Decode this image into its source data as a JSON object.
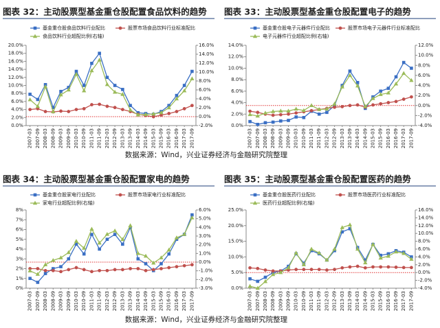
{
  "chart_data": [
    {
      "type": "line",
      "title": "图表 32：主动股票型基金重仓股配置食品饮料的趋势",
      "categories": [
        "2007-03",
        "2007-09",
        "2008-03",
        "2008-09",
        "2009-03",
        "2009-09",
        "2010-03",
        "2010-09",
        "2011-03",
        "2011-09",
        "2012-03",
        "2012-09",
        "2013-03",
        "2013-09",
        "2014-03",
        "2014-09",
        "2015-03",
        "2015-09",
        "2016-03",
        "2016-09",
        "2017-03",
        "2017-09"
      ],
      "series": [
        {
          "name": "基金重仓股食品饮料行业配比",
          "color": "#3a6fc4",
          "marker": "square",
          "axis": "y",
          "values": [
            7.8,
            6.5,
            10.2,
            4.5,
            8.5,
            9.5,
            13.5,
            10,
            15.5,
            18,
            12,
            10,
            9,
            5,
            3.2,
            3,
            2.8,
            3.5,
            5,
            7.5,
            10,
            13.5
          ]
        },
        {
          "name": "股票市场食品饮料行业标准配比",
          "color": "#c0504d",
          "marker": "circle",
          "axis": "y",
          "values": [
            4,
            4.2,
            3.5,
            3.4,
            3.6,
            3.5,
            4,
            4.2,
            5.2,
            5.3,
            4.8,
            4.5,
            4,
            3.5,
            2.8,
            2.5,
            2.2,
            2.6,
            3,
            3.5,
            4.2,
            5
          ]
        },
        {
          "name": "食品饮料行业超配比例(右轴)",
          "color": "#9bbb59",
          "marker": "triangle",
          "axis": "y2",
          "values": [
            3.8,
            2.3,
            6.7,
            1.1,
            4.9,
            6,
            9.5,
            5.8,
            10.3,
            12.7,
            7.2,
            5.5,
            5,
            1.5,
            0.4,
            0.5,
            0.6,
            0.9,
            2,
            4,
            5.8,
            8.5
          ]
        }
      ],
      "ylim": [
        0,
        20
      ],
      "yticks": [
        {
          "value": 0,
          "label": "0.0%"
        },
        {
          "value": 2,
          "label": "2.0%"
        },
        {
          "value": 4,
          "label": "4.0%"
        },
        {
          "value": 6,
          "label": "6.0%"
        },
        {
          "value": 8,
          "label": "8.0%"
        },
        {
          "value": 10,
          "label": "10.0%"
        },
        {
          "value": 12,
          "label": "12.0%"
        },
        {
          "value": 14,
          "label": "14.0%"
        },
        {
          "value": 16,
          "label": "16.0%"
        },
        {
          "value": 18,
          "label": "18.0%"
        },
        {
          "value": 20,
          "label": "20.0%"
        }
      ],
      "y2lim": [
        -2,
        16
      ],
      "y2ticks": [
        {
          "value": -2,
          "label": "-2.0%"
        },
        {
          "value": 0,
          "label": "0.0%"
        },
        {
          "value": 2,
          "label": "2.0%"
        },
        {
          "value": 4,
          "label": "4.0%"
        },
        {
          "value": 6,
          "label": "6.0%"
        },
        {
          "value": 8,
          "label": "8.0%"
        },
        {
          "value": 10,
          "label": "10.0%"
        },
        {
          "value": 12,
          "label": "12.0%"
        },
        {
          "value": 14,
          "label": "14.0%"
        },
        {
          "value": 16,
          "label": "16.0%"
        }
      ],
      "y2_refline": 0,
      "refline_color": "#e03030"
    },
    {
      "type": "line",
      "title": "图表 33：主动股票型基金重仓股配置电子的趋势",
      "categories": [
        "2007-03",
        "2007-09",
        "2008-03",
        "2008-09",
        "2009-03",
        "2009-09",
        "2010-03",
        "2010-09",
        "2011-03",
        "2011-09",
        "2012-03",
        "2012-09",
        "2013-03",
        "2013-09",
        "2014-03",
        "2014-09",
        "2015-03",
        "2015-09",
        "2016-03",
        "2016-09",
        "2017-03",
        "2017-09"
      ],
      "series": [
        {
          "name": "基金重仓股电子元器件行业配比",
          "color": "#3a6fc4",
          "marker": "square",
          "axis": "y",
          "values": [
            0.7,
            0.2,
            0.5,
            0.6,
            0.8,
            0.9,
            1.5,
            1.4,
            2.5,
            2,
            2.3,
            3.5,
            7,
            9.5,
            7.5,
            3,
            5,
            6,
            6.5,
            8.5,
            11,
            10
          ]
        },
        {
          "name": "股票市场电子元器件行业标准配比",
          "color": "#c0504d",
          "marker": "circle",
          "axis": "y",
          "values": [
            2.5,
            2.3,
            2,
            1.8,
            1.9,
            2,
            2.2,
            2.4,
            2.6,
            2.8,
            3,
            3.2,
            3.3,
            3.5,
            3.6,
            3.2,
            3.6,
            3.8,
            4,
            4.2,
            4.6,
            5
          ]
        },
        {
          "name": "电子元器件行业超配比例(右轴)",
          "color": "#9bbb59",
          "marker": "triangle",
          "axis": "y2",
          "values": [
            -1.8,
            -2.1,
            -1.5,
            -1.2,
            -1.1,
            -1.1,
            -0.7,
            -1,
            0,
            -0.8,
            -0.7,
            0.3,
            3.7,
            6,
            3.9,
            -0.2,
            1.4,
            2.2,
            2.5,
            4.3,
            6.4,
            5
          ]
        }
      ],
      "ylim": [
        0,
        14
      ],
      "yticks": [
        {
          "value": 0,
          "label": "0.0%"
        },
        {
          "value": 2,
          "label": "2.0%"
        },
        {
          "value": 4,
          "label": "4.0%"
        },
        {
          "value": 6,
          "label": "6.0%"
        },
        {
          "value": 8,
          "label": "8.0%"
        },
        {
          "value": 10,
          "label": "10.0%"
        },
        {
          "value": 12,
          "label": "12.0%"
        },
        {
          "value": 14,
          "label": "14.0%"
        }
      ],
      "y2lim": [
        -4,
        12
      ],
      "y2ticks": [
        {
          "value": -4,
          "label": "-4.0%"
        },
        {
          "value": -2,
          "label": "-2.0%"
        },
        {
          "value": 0,
          "label": "0.0%"
        },
        {
          "value": 2,
          "label": "2.0%"
        },
        {
          "value": 4,
          "label": "4.0%"
        },
        {
          "value": 6,
          "label": "6.0%"
        },
        {
          "value": 8,
          "label": "8.0%"
        },
        {
          "value": 10,
          "label": "10.0%"
        },
        {
          "value": 12,
          "label": "12.0%"
        }
      ],
      "y2_refline": 0,
      "refline_color": "#e03030"
    },
    {
      "type": "line",
      "title": "图表 34：主动股票型基金重仓股配置家电的趋势",
      "categories": [
        "2007-03",
        "2007-09",
        "2008-03",
        "2008-09",
        "2009-03",
        "2009-09",
        "2010-03",
        "2010-09",
        "2011-03",
        "2011-09",
        "2012-03",
        "2012-09",
        "2013-03",
        "2013-09",
        "2014-03",
        "2014-09",
        "2015-03",
        "2015-09",
        "2016-03",
        "2016-09",
        "2017-03",
        "2017-09"
      ],
      "series": [
        {
          "name": "基金重仓股家电行业配比",
          "color": "#3a6fc4",
          "marker": "square",
          "axis": "y",
          "values": [
            1,
            0.6,
            1.5,
            2,
            2.2,
            3,
            4.5,
            3.5,
            5.5,
            4,
            5,
            5.5,
            4.5,
            6.2,
            3,
            2.5,
            1.8,
            2.5,
            3.5,
            5,
            5.5,
            7.5
          ]
        },
        {
          "name": "股票市场家电行业标准配比",
          "color": "#c0504d",
          "marker": "circle",
          "axis": "y",
          "values": [
            2,
            2,
            1.8,
            1.8,
            1.7,
            1.9,
            2.1,
            1.9,
            1.7,
            1.8,
            1.8,
            1.9,
            1.9,
            2,
            2,
            1.8,
            1.9,
            2,
            2.1,
            2.2,
            2.3,
            2.4
          ]
        },
        {
          "name": "家电行业超配比例(右轴)",
          "color": "#9bbb59",
          "marker": "triangle",
          "axis": "y2",
          "values": [
            -1,
            -1.4,
            -0.3,
            0.2,
            0.5,
            1.1,
            2.4,
            1.6,
            3.8,
            2.2,
            3.2,
            3.6,
            2.6,
            4.2,
            1,
            0.7,
            -0.1,
            0.5,
            1.4,
            2.8,
            3.2,
            5.1
          ]
        }
      ],
      "ylim": [
        0,
        8
      ],
      "yticks": [
        {
          "value": 0,
          "label": "0%"
        },
        {
          "value": 1,
          "label": "1%"
        },
        {
          "value": 2,
          "label": "2%"
        },
        {
          "value": 3,
          "label": "3%"
        },
        {
          "value": 4,
          "label": "4%"
        },
        {
          "value": 5,
          "label": "5%"
        },
        {
          "value": 6,
          "label": "6%"
        },
        {
          "value": 7,
          "label": "7%"
        },
        {
          "value": 8,
          "label": "8%"
        }
      ],
      "y2lim": [
        -3,
        6
      ],
      "y2ticks": [
        {
          "value": -3,
          "label": "-3.0%"
        },
        {
          "value": -2,
          "label": "-2.0%"
        },
        {
          "value": -1,
          "label": "-1.0%"
        },
        {
          "value": 0,
          "label": "0.0%"
        },
        {
          "value": 1,
          "label": "1.0%"
        },
        {
          "value": 2,
          "label": "2.0%"
        },
        {
          "value": 3,
          "label": "3.0%"
        },
        {
          "value": 4,
          "label": "4.0%"
        },
        {
          "value": 5,
          "label": "5.0%"
        },
        {
          "value": 6,
          "label": "6.0%"
        }
      ],
      "y2_refline": 0,
      "refline_color": "#e03030"
    },
    {
      "type": "line",
      "title": "图表 35：主动股票型基金重仓股配置医药的趋势",
      "categories": [
        "2007-03",
        "2007-09",
        "2008-03",
        "2008-09",
        "2009-03",
        "2009-09",
        "2010-03",
        "2010-09",
        "2011-03",
        "2011-09",
        "2012-03",
        "2012-09",
        "2013-03",
        "2013-09",
        "2014-03",
        "2014-09",
        "2015-03",
        "2015-09",
        "2016-03",
        "2016-09",
        "2017-03",
        "2017-09"
      ],
      "series": [
        {
          "name": "基金重仓股医药行业配比",
          "color": "#3a6fc4",
          "marker": "square",
          "axis": "y",
          "values": [
            3,
            2.2,
            3.5,
            5,
            5.5,
            7,
            11,
            8,
            12,
            11,
            9,
            12,
            18,
            19,
            13,
            9,
            14,
            10.5,
            11,
            12,
            11.5,
            10
          ]
        },
        {
          "name": "股票市场医药行业标准配比",
          "color": "#c0504d",
          "marker": "circle",
          "axis": "y",
          "values": [
            6.5,
            6.3,
            5.8,
            5.5,
            5.5,
            5.8,
            6,
            6,
            6,
            6,
            5.8,
            6,
            6.5,
            6.8,
            7,
            6.5,
            6.8,
            6.8,
            6.8,
            6.7,
            6.6,
            6.6
          ]
        },
        {
          "name": "医药行业超配比例(右轴)",
          "color": "#9bbb59",
          "marker": "triangle",
          "axis": "y2",
          "values": [
            -3.5,
            -4,
            -2.3,
            -0.5,
            0,
            1.2,
            5,
            2,
            6,
            5,
            3.2,
            6,
            11.5,
            12.2,
            6,
            2.5,
            7.2,
            3.7,
            4.2,
            5.3,
            4.9,
            3.4
          ]
        }
      ],
      "ylim": [
        0,
        25
      ],
      "yticks": [
        {
          "value": 0,
          "label": "0.0%"
        },
        {
          "value": 5,
          "label": "5.0%"
        },
        {
          "value": 10,
          "label": "10.0%"
        },
        {
          "value": 15,
          "label": "15.0%"
        },
        {
          "value": 20,
          "label": "20.0%"
        },
        {
          "value": 25,
          "label": "25.0%"
        }
      ],
      "y2lim": [
        -4,
        16
      ],
      "y2ticks": [
        {
          "value": -4,
          "label": "-4.0%"
        },
        {
          "value": -2,
          "label": "-2.0%"
        },
        {
          "value": 0,
          "label": "0.0%"
        },
        {
          "value": 2,
          "label": "2.0%"
        },
        {
          "value": 4,
          "label": "4.0%"
        },
        {
          "value": 6,
          "label": "6.0%"
        },
        {
          "value": 8,
          "label": "8.0%"
        },
        {
          "value": 10,
          "label": "10.0%"
        },
        {
          "value": 12,
          "label": "12.0%"
        },
        {
          "value": 14,
          "label": "14.0%"
        },
        {
          "value": 16,
          "label": "16.0%"
        }
      ],
      "y2_refline": 0,
      "refline_color": "#e03030"
    }
  ],
  "sources": [
    "数据来源：Wind，兴业证券经济与金融研究院整理",
    "数据来源：Wind，兴业证券经济与金融研究院整理"
  ]
}
